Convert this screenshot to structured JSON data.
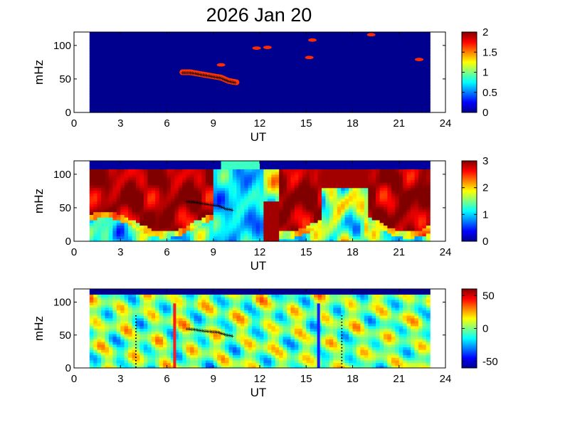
{
  "figure": {
    "title": "2026 Jan 20"
  },
  "colors": {
    "background_low": "#00008f",
    "jet_stops": [
      "#00008f",
      "#0000ff",
      "#0080ff",
      "#00ffff",
      "#80ff80",
      "#ffff00",
      "#ff8000",
      "#ff0000",
      "#800000"
    ],
    "marker": "#000000",
    "red_line": "#ff1a1a",
    "blue_line": "#1a1aff"
  },
  "chart_data": [
    {
      "type": "heatmap",
      "id": "panel1",
      "xlabel": "UT",
      "ylabel": "mHz",
      "xlim": [
        0,
        24
      ],
      "ylim": [
        0,
        120
      ],
      "xticks": [
        "0",
        "3",
        "6",
        "9",
        "12",
        "15",
        "18",
        "21",
        "24"
      ],
      "yticks": [
        "0",
        "50",
        "100"
      ],
      "data_range_ut": [
        1,
        23
      ],
      "colorbar": {
        "min": 0,
        "max": 2,
        "ticks": [
          "0",
          "0.5",
          "1",
          "1.5",
          "2"
        ]
      },
      "peak_track": [
        [
          7.0,
          59
        ],
        [
          7.5,
          59
        ],
        [
          8.0,
          57
        ],
        [
          8.5,
          55
        ],
        [
          9.0,
          53
        ],
        [
          9.5,
          51
        ],
        [
          10.0,
          46
        ],
        [
          10.5,
          44
        ]
      ],
      "hotspots": [
        [
          12.5,
          97
        ],
        [
          11.8,
          96
        ],
        [
          9.5,
          71
        ],
        [
          15.4,
          108
        ],
        [
          15.2,
          82
        ],
        [
          19.2,
          116
        ],
        [
          22.3,
          79
        ],
        [
          7.5,
          60
        ],
        [
          10.3,
          44
        ]
      ]
    },
    {
      "type": "heatmap",
      "id": "panel2",
      "xlabel": "UT",
      "ylabel": "mHz",
      "xlim": [
        0,
        24
      ],
      "ylim": [
        0,
        120
      ],
      "xticks": [
        "0",
        "3",
        "6",
        "9",
        "12",
        "15",
        "18",
        "21",
        "24"
      ],
      "yticks": [
        "0",
        "50",
        "100"
      ],
      "data_range_ut": [
        1,
        23
      ],
      "colorbar": {
        "min": 0,
        "max": 3,
        "ticks": [
          "0",
          "1",
          "2",
          "3"
        ]
      },
      "peak_track": [
        [
          7.3,
          59
        ],
        [
          7.8,
          58
        ],
        [
          8.3,
          56
        ],
        [
          8.8,
          54
        ],
        [
          9.3,
          53
        ],
        [
          9.8,
          48
        ],
        [
          10.3,
          46
        ]
      ]
    },
    {
      "type": "heatmap",
      "id": "panel3",
      "xlabel": "UT",
      "ylabel": "mHz",
      "xlim": [
        0,
        24
      ],
      "ylim": [
        0,
        120
      ],
      "xticks": [
        "0",
        "3",
        "6",
        "9",
        "12",
        "15",
        "18",
        "21",
        "24"
      ],
      "yticks": [
        "0",
        "50",
        "100"
      ],
      "data_range_ut": [
        1,
        23
      ],
      "colorbar": {
        "min": -60,
        "max": 60,
        "ticks": [
          "-50",
          "0",
          "50"
        ]
      },
      "peak_track": [
        [
          7.3,
          59
        ],
        [
          7.8,
          58
        ],
        [
          8.3,
          56
        ],
        [
          8.8,
          55
        ],
        [
          9.3,
          54
        ],
        [
          9.8,
          50
        ],
        [
          10.3,
          48
        ]
      ],
      "vertical_lines": [
        {
          "ut": 6.5,
          "color": "red",
          "style": "solid"
        },
        {
          "ut": 15.8,
          "color": "blue",
          "style": "solid"
        },
        {
          "ut": 4.0,
          "color": "black",
          "style": "dotted"
        },
        {
          "ut": 17.3,
          "color": "black",
          "style": "dotted"
        }
      ]
    }
  ]
}
